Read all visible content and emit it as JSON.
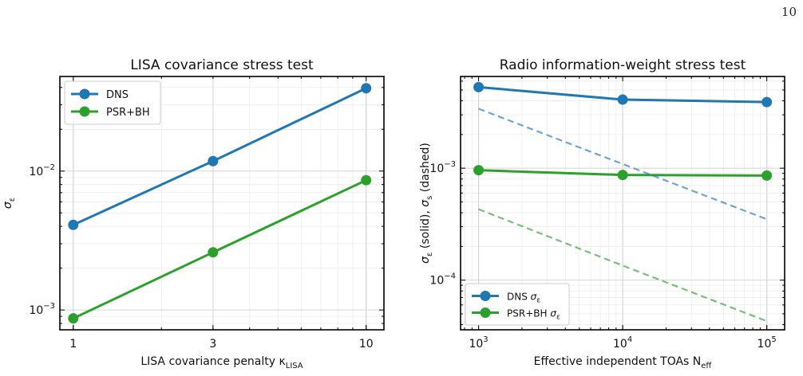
{
  "page_number": "10",
  "chart_data": [
    {
      "type": "line",
      "title": "LISA covariance stress test",
      "xlabel": "LISA covariance penalty κ",
      "xlabel_sub": "LISA",
      "ylabel": "σ",
      "ylabel_sub": "ε",
      "xscale": "log",
      "yscale": "log",
      "x": [
        1,
        3,
        10
      ],
      "xticks": [
        {
          "value": 1,
          "label": "1"
        },
        {
          "value": 3,
          "label": "3"
        },
        {
          "value": 10,
          "label": "10"
        }
      ],
      "xlim": [
        0.9,
        11.5
      ],
      "yticks": [
        {
          "value": 0.001,
          "base": "10",
          "exp": "−3"
        },
        {
          "value": 0.01,
          "base": "10",
          "exp": "−2"
        }
      ],
      "ylim": [
        0.00072,
        0.048
      ],
      "grid": true,
      "legend_position": "top-left",
      "series": [
        {
          "name": "DNS",
          "color": "#1f77b4",
          "style": "solid",
          "legend": true,
          "values": [
            0.0041,
            0.0118,
            0.0395
          ]
        },
        {
          "name": "PSR+BH",
          "color": "#2ca02c",
          "style": "solid",
          "legend": true,
          "values": [
            0.00087,
            0.0026,
            0.0086
          ]
        }
      ]
    },
    {
      "type": "line",
      "title": "Radio information-weight stress test",
      "xlabel": "Effective independent TOAs N",
      "xlabel_sub": "eff",
      "ylabel": "σ (solid), σ (dashed)",
      "ylabel_parts": {
        "sigma1": "σ",
        "sub1": "ε",
        "mid": " (solid), ",
        "sigma2": "σ",
        "sub2": "s",
        "end": " (dashed)"
      },
      "xscale": "log",
      "yscale": "log",
      "x": [
        1000,
        10000,
        100000
      ],
      "xticks": [
        {
          "value": 1000,
          "base": "10",
          "exp": "3"
        },
        {
          "value": 10000,
          "base": "10",
          "exp": "4"
        },
        {
          "value": 100000,
          "base": "10",
          "exp": "5"
        }
      ],
      "xlim": [
        750,
        133000
      ],
      "yticks": [
        {
          "value": 0.0001,
          "base": "10",
          "exp": "−4"
        },
        {
          "value": 0.001,
          "base": "10",
          "exp": "−3"
        }
      ],
      "ylim": [
        3.6e-05,
        0.0066
      ],
      "grid": true,
      "legend_position": "bottom-left",
      "series": [
        {
          "name": "DNS σε",
          "label_base": "DNS ",
          "label_sigma": "σ",
          "label_sub": "ε",
          "color": "#1f77b4",
          "style": "solid",
          "legend": true,
          "values": [
            0.0053,
            0.0041,
            0.0039
          ]
        },
        {
          "name": "PSR+BH σε",
          "label_base": "PSR+BH ",
          "label_sigma": "σ",
          "label_sub": "ε",
          "color": "#2ca02c",
          "style": "solid",
          "legend": true,
          "values": [
            0.00096,
            0.00087,
            0.00086
          ]
        },
        {
          "name": "",
          "color": "#1f77b4",
          "style": "dashed",
          "legend": false,
          "values": [
            0.0034,
            0.00109,
            0.00035
          ]
        },
        {
          "name": "",
          "color": "#2ca02c",
          "style": "dashed",
          "legend": false,
          "values": [
            0.00043,
            0.000135,
            4.3e-05
          ]
        }
      ]
    }
  ]
}
